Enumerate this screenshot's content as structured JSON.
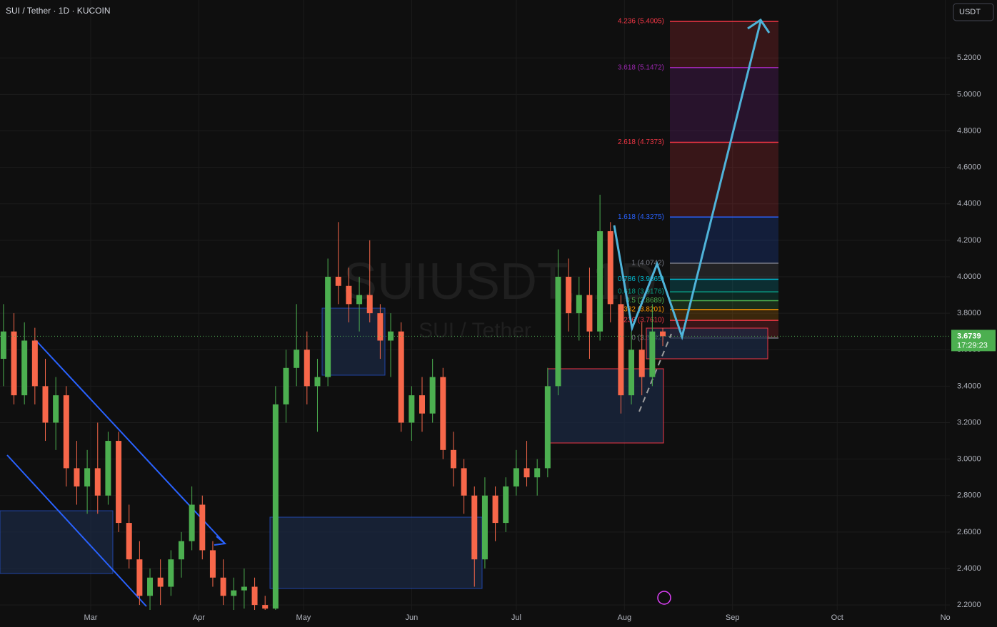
{
  "chart_data": {
    "type": "candlestick",
    "title": "SUI / Tether · 1D · KUCOIN",
    "currency": "USDT",
    "watermark": "SUIUSDT, 1D",
    "watermark_subtitle": "SUI / Tether",
    "up_color": "#4caf50",
    "down_color": "#f7674a",
    "candles": [
      [
        -25,
        3.55,
        3.85,
        3.4,
        3.7
      ],
      [
        -22,
        3.7,
        3.8,
        3.3,
        3.35
      ],
      [
        -19,
        3.35,
        3.75,
        3.3,
        3.65
      ],
      [
        -16,
        3.65,
        3.72,
        3.3,
        3.4
      ],
      [
        -13,
        3.4,
        3.55,
        3.1,
        3.2
      ],
      [
        -10,
        3.2,
        3.45,
        3.05,
        3.35
      ],
      [
        -7,
        3.35,
        3.4,
        2.85,
        2.95
      ],
      [
        -4,
        2.95,
        3.1,
        2.75,
        2.85
      ],
      [
        -1,
        2.85,
        3.05,
        2.7,
        2.95
      ],
      [
        2,
        2.95,
        3.2,
        2.7,
        2.8
      ],
      [
        5,
        2.8,
        3.15,
        2.75,
        3.1
      ],
      [
        8,
        3.1,
        3.15,
        2.6,
        2.65
      ],
      [
        11,
        2.65,
        2.75,
        2.4,
        2.45
      ],
      [
        14,
        2.45,
        2.55,
        2.2,
        2.25
      ],
      [
        17,
        2.25,
        2.4,
        2.15,
        2.35
      ],
      [
        20,
        2.35,
        2.45,
        2.2,
        2.3
      ],
      [
        23,
        2.3,
        2.5,
        2.25,
        2.45
      ],
      [
        26,
        2.45,
        2.6,
        2.35,
        2.55
      ],
      [
        29,
        2.55,
        2.85,
        2.5,
        2.75
      ],
      [
        32,
        2.75,
        2.8,
        2.45,
        2.5
      ],
      [
        35,
        2.5,
        2.55,
        2.3,
        2.35
      ],
      [
        38,
        2.35,
        2.45,
        2.2,
        2.25
      ],
      [
        41,
        2.25,
        2.35,
        2.15,
        2.28
      ],
      [
        44,
        2.28,
        2.4,
        2.18,
        2.3
      ],
      [
        47,
        2.3,
        2.35,
        2.12,
        2.2
      ],
      [
        50,
        2.2,
        2.25,
        2.12,
        2.18
      ],
      [
        53,
        2.18,
        3.4,
        2.15,
        3.3
      ],
      [
        56,
        3.3,
        3.6,
        3.2,
        3.5
      ],
      [
        59,
        3.5,
        3.85,
        3.4,
        3.6
      ],
      [
        62,
        3.6,
        3.7,
        3.3,
        3.4
      ],
      [
        65,
        3.4,
        3.55,
        3.15,
        3.45
      ],
      [
        68,
        3.45,
        4.1,
        3.4,
        4.0
      ],
      [
        71,
        4.0,
        4.3,
        3.85,
        3.95
      ],
      [
        74,
        3.95,
        4.05,
        3.75,
        3.85
      ],
      [
        77,
        3.85,
        4.0,
        3.7,
        3.9
      ],
      [
        80,
        3.9,
        4.2,
        3.75,
        3.8
      ],
      [
        83,
        3.8,
        3.85,
        3.55,
        3.65
      ],
      [
        86,
        3.65,
        3.8,
        3.45,
        3.7
      ],
      [
        89,
        3.7,
        3.75,
        3.15,
        3.2
      ],
      [
        92,
        3.2,
        3.4,
        3.1,
        3.35
      ],
      [
        95,
        3.35,
        3.45,
        3.15,
        3.25
      ],
      [
        98,
        3.25,
        3.55,
        3.2,
        3.45
      ],
      [
        101,
        3.45,
        3.5,
        3.0,
        3.05
      ],
      [
        104,
        3.05,
        3.15,
        2.85,
        2.95
      ],
      [
        107,
        2.95,
        3.0,
        2.7,
        2.8
      ],
      [
        110,
        2.8,
        2.85,
        2.3,
        2.45
      ],
      [
        113,
        2.45,
        2.9,
        2.4,
        2.8
      ],
      [
        116,
        2.8,
        2.85,
        2.55,
        2.65
      ],
      [
        119,
        2.65,
        2.9,
        2.6,
        2.85
      ],
      [
        122,
        2.85,
        3.05,
        2.8,
        2.95
      ],
      [
        125,
        2.95,
        3.1,
        2.85,
        2.9
      ],
      [
        128,
        2.9,
        3.0,
        2.8,
        2.95
      ],
      [
        131,
        2.95,
        3.5,
        2.9,
        3.4
      ],
      [
        134,
        3.4,
        4.15,
        3.35,
        4.0
      ],
      [
        137,
        4.0,
        4.1,
        3.7,
        3.8
      ],
      [
        140,
        3.8,
        4.0,
        3.65,
        3.9
      ],
      [
        143,
        3.9,
        4.05,
        3.55,
        3.7
      ],
      [
        146,
        3.7,
        4.45,
        3.65,
        4.25
      ],
      [
        149,
        4.25,
        4.3,
        3.75,
        3.85
      ],
      [
        152,
        3.85,
        3.9,
        3.25,
        3.35
      ],
      [
        155,
        3.35,
        3.7,
        3.3,
        3.6
      ],
      [
        158,
        3.6,
        3.75,
        3.35,
        3.45
      ],
      [
        161,
        3.45,
        3.85,
        3.4,
        3.7
      ],
      [
        164,
        3.7,
        3.72,
        3.62,
        3.6739
      ]
    ],
    "xlim": [
      -26,
      246.3
    ],
    "xticks": [
      {
        "value": 0,
        "label": "Mar"
      },
      {
        "value": 31,
        "label": "Apr"
      },
      {
        "value": 61,
        "label": "May"
      },
      {
        "value": 92,
        "label": "Jun"
      },
      {
        "value": 122,
        "label": "Jul"
      },
      {
        "value": 153,
        "label": "Aug"
      },
      {
        "value": 184,
        "label": "Sep"
      },
      {
        "value": 214,
        "label": "Oct"
      },
      {
        "value": 245,
        "label": "No"
      }
    ],
    "ylim": [
      2.173,
      5.518
    ],
    "yticks": [
      {
        "value": 2.2,
        "label": "2.2000"
      },
      {
        "value": 2.4,
        "label": "2.4000"
      },
      {
        "value": 2.6,
        "label": "2.6000"
      },
      {
        "value": 2.8,
        "label": "2.8000"
      },
      {
        "value": 3.0,
        "label": "3.0000"
      },
      {
        "value": 3.2,
        "label": "3.2000"
      },
      {
        "value": 3.4,
        "label": "3.4000"
      },
      {
        "value": 3.6,
        "label": "3.6000"
      },
      {
        "value": 3.8,
        "label": "3.8000"
      },
      {
        "value": 4.0,
        "label": "4.0000"
      },
      {
        "value": 4.2,
        "label": "4.2000"
      },
      {
        "value": 4.4,
        "label": "4.4000"
      },
      {
        "value": 4.6,
        "label": "4.6000"
      },
      {
        "value": 4.8,
        "label": "4.8000"
      },
      {
        "value": 5.0,
        "label": "5.0000"
      },
      {
        "value": 5.2,
        "label": "5.2000"
      }
    ],
    "grid": true,
    "last_price": 3.6739,
    "countdown": "17:29:23",
    "fib_levels": [
      {
        "value": 5.4005,
        "label": "4.236 (5.4005)",
        "color": "#f23645"
      },
      {
        "value": 5.1472,
        "label": "3.618 (5.1472)",
        "color": "#9c27b0"
      },
      {
        "value": 4.7373,
        "label": "2.618 (4.7373)",
        "color": "#f23645"
      },
      {
        "value": 4.3275,
        "label": "1.618 (4.3275)",
        "color": "#2962ff"
      },
      {
        "value": 4.0742,
        "label": "1 (4.0742)",
        "color": "#787b86"
      },
      {
        "value": 3.9865,
        "label": "0.786 (3.9865)",
        "color": "#00bcd4"
      },
      {
        "value": 3.9176,
        "label": "0.618 (3.9176)",
        "color": "#089981"
      },
      {
        "value": 3.8689,
        "label": "0.5 (3.8689)",
        "color": "#4caf50"
      },
      {
        "value": 3.8201,
        "label": "0.382 (3.8201)",
        "color": "#ff9800"
      },
      {
        "value": 3.761,
        "label": "0.236 (3.7610)",
        "color": "#f23645"
      },
      {
        "value": 3.6642,
        "label": "0 (3.6642)",
        "color": "#787b86"
      }
    ]
  }
}
